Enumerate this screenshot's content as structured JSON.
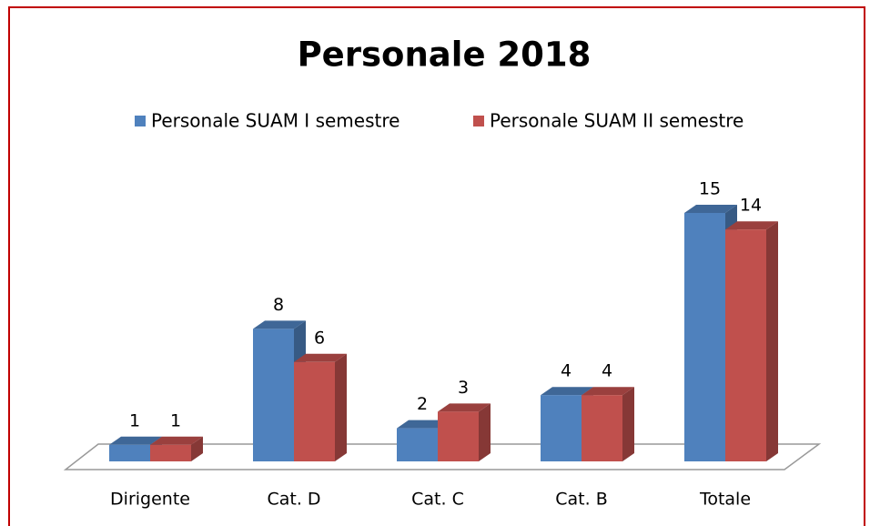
{
  "chart_data": {
    "type": "bar3d",
    "title": "Personale 2018",
    "categories": [
      "Dirigente",
      "Cat. D",
      "Cat. C",
      "Cat. B",
      "Totale"
    ],
    "series": [
      {
        "name": "Personale SUAM I semestre",
        "color": "#4f81bd",
        "values": [
          1,
          8,
          2,
          4,
          15
        ]
      },
      {
        "name": "Personale SUAM II semestre",
        "color": "#c0504d",
        "values": [
          1,
          6,
          3,
          4,
          14
        ]
      }
    ],
    "legend": "top"
  }
}
